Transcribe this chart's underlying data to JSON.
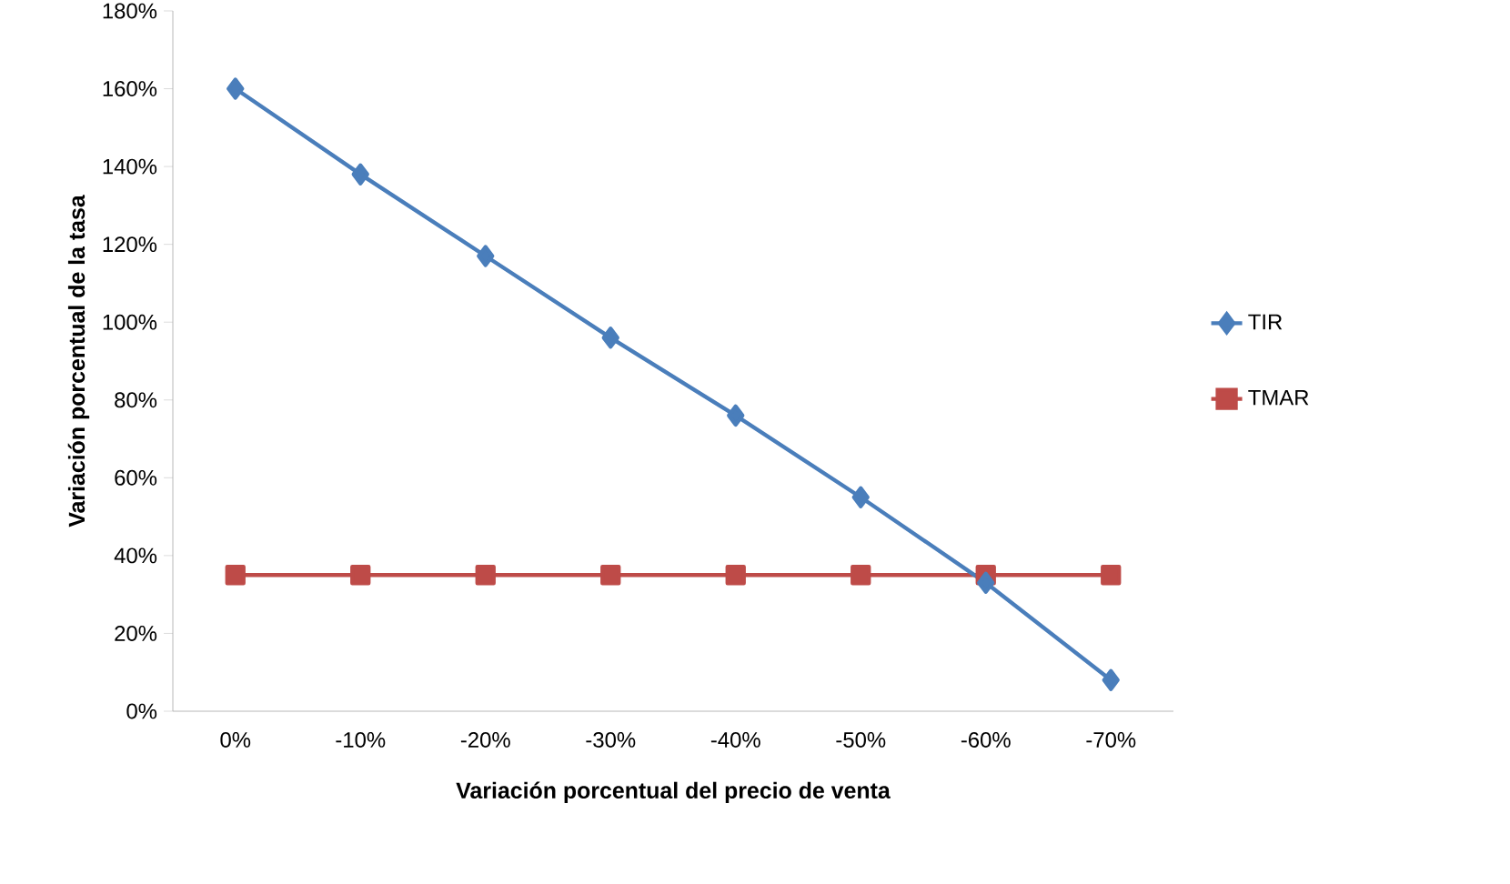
{
  "chart_data": {
    "type": "line",
    "xlabel": "Variación porcentual del precio de venta",
    "ylabel": "Variación porcentual de la tasa",
    "categories": [
      "0%",
      "-10%",
      "-20%",
      "-30%",
      "-40%",
      "-50%",
      "-60%",
      "-70%"
    ],
    "series": [
      {
        "name": "TIR",
        "color": "#4a7ebb",
        "marker": "diamond",
        "values": [
          160,
          138,
          117,
          96,
          76,
          55,
          33,
          8
        ]
      },
      {
        "name": "TMAR",
        "color": "#be4b48",
        "marker": "square",
        "values": [
          35,
          35,
          35,
          35,
          35,
          35,
          35,
          35
        ]
      }
    ],
    "ylim": [
      0,
      180
    ],
    "yticks": [
      {
        "value": 0,
        "label": "0%"
      },
      {
        "value": 20,
        "label": "20%"
      },
      {
        "value": 40,
        "label": "40%"
      },
      {
        "value": 60,
        "label": "60%"
      },
      {
        "value": 80,
        "label": "80%"
      },
      {
        "value": 100,
        "label": "100%"
      },
      {
        "value": 120,
        "label": "120%"
      },
      {
        "value": 140,
        "label": "140%"
      },
      {
        "value": 160,
        "label": "160%"
      },
      {
        "value": 180,
        "label": "180%"
      }
    ],
    "legend": "right",
    "grid": false
  }
}
